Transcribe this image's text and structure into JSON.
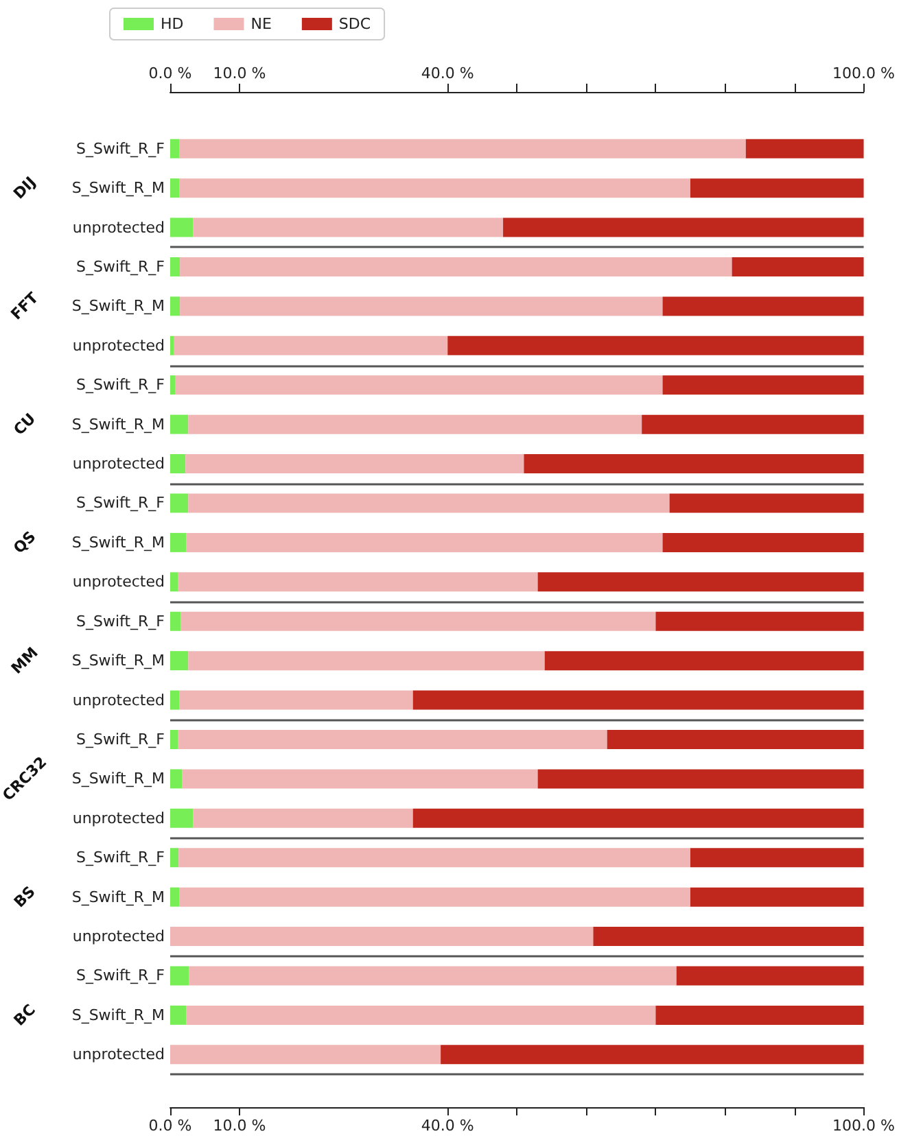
{
  "chart_data": {
    "type": "bar",
    "orientation": "horizontal",
    "stacked": true,
    "categories": [
      "S_Swift_R_F",
      "S_Swift_R_M",
      "unprotected",
      "S_Swift_R_F",
      "S_Swift_R_M",
      "unprotected",
      "S_Swift_R_F",
      "S_Swift_R_M",
      "unprotected",
      "S_Swift_R_F",
      "S_Swift_R_M",
      "unprotected",
      "S_Swift_R_F",
      "S_Swift_R_M",
      "unprotected",
      "S_Swift_R_F",
      "S_Swift_R_M",
      "unprotected",
      "S_Swift_R_F",
      "S_Swift_R_M",
      "unprotected",
      "S_Swift_R_F",
      "S_Swift_R_M",
      "unprotected"
    ],
    "series": [
      {
        "name": "HD",
        "color": "#77ee55",
        "values": [
          1.3,
          1.3,
          3.3,
          1.4,
          1.4,
          0.5,
          0.7,
          2.6,
          2.2,
          2.6,
          2.3,
          1.1,
          1.5,
          2.6,
          1.3,
          1.1,
          1.7,
          3.3,
          1.2,
          1.3,
          0,
          2.7,
          2.3,
          0
        ]
      },
      {
        "name": "NE",
        "color": "#f0b5b5",
        "values": [
          81.7,
          73.7,
          44.7,
          79.6,
          69.6,
          39.5,
          70.3,
          65.4,
          48.8,
          69.4,
          68.7,
          51.9,
          68.5,
          51.4,
          33.7,
          61.9,
          51.3,
          31.7,
          73.8,
          73.7,
          61,
          70.3,
          67.7,
          39
        ]
      },
      {
        "name": "SDC",
        "color": "#c0281e",
        "values": [
          17,
          25,
          52,
          19,
          29,
          60,
          29,
          32,
          49,
          28,
          29,
          47,
          30,
          46,
          65,
          37,
          47,
          65,
          25,
          25,
          39,
          27,
          30,
          61
        ]
      }
    ],
    "xlim": [
      0,
      100
    ],
    "xticks": [
      {
        "value": 0,
        "label": "0.0 %"
      },
      {
        "value": 10,
        "label": "10.0 %"
      },
      {
        "value": 40,
        "label": "40.0 %"
      },
      {
        "value": 50,
        "label": null
      },
      {
        "value": 60,
        "label": null
      },
      {
        "value": 70,
        "label": null
      },
      {
        "value": 80,
        "label": null
      },
      {
        "value": 90,
        "label": null
      },
      {
        "value": 100,
        "label": "100.0 %"
      }
    ],
    "x2lim": [
      0,
      100
    ],
    "x2ticks": [
      {
        "value": 0,
        "label": "0.0 %"
      },
      {
        "value": 10,
        "label": "10.0 %"
      },
      {
        "value": 40,
        "label": "40.0 %"
      },
      {
        "value": 50,
        "label": null
      },
      {
        "value": 60,
        "label": null
      },
      {
        "value": 70,
        "label": null
      },
      {
        "value": 80,
        "label": null
      },
      {
        "value": 90,
        "label": null
      },
      {
        "value": 100,
        "label": "100.0 %"
      }
    ],
    "annotations": [
      "DIJ",
      "FFT",
      "CU",
      "QS",
      "MM",
      "CRC32",
      "BS",
      "BC"
    ],
    "grid": "y",
    "legend": "top left"
  }
}
